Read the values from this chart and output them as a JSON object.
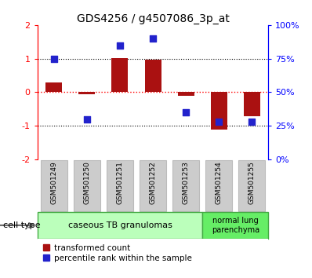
{
  "title": "GDS4256 / g4507086_3p_at",
  "samples": [
    "GSM501249",
    "GSM501250",
    "GSM501251",
    "GSM501252",
    "GSM501253",
    "GSM501254",
    "GSM501255"
  ],
  "red_values": [
    0.3,
    -0.05,
    1.02,
    0.97,
    -0.1,
    -1.12,
    -0.72
  ],
  "blue_values_pct": [
    75,
    30,
    85,
    90,
    35,
    28,
    28
  ],
  "ylim_red": [
    -2,
    2
  ],
  "ylim_blue": [
    0,
    100
  ],
  "yticks_red": [
    -2,
    -1,
    0,
    1,
    2
  ],
  "yticks_blue": [
    0,
    25,
    50,
    75,
    100
  ],
  "ytick_labels_blue": [
    "0%",
    "25%",
    "50%",
    "75%",
    "100%"
  ],
  "bar_width": 0.5,
  "square_size": 40,
  "red_color": "#aa1111",
  "blue_color": "#2222cc",
  "cell_type_groups": [
    {
      "label": "caseous TB granulomas",
      "span": [
        0,
        4
      ],
      "color": "#bbffbb"
    },
    {
      "label": "normal lung\nparenchyma",
      "span": [
        5,
        6
      ],
      "color": "#66ee66"
    }
  ],
  "legend_red": "transformed count",
  "legend_blue": "percentile rank within the sample",
  "cell_type_label": "cell type",
  "background_color": "#ffffff",
  "plot_bg": "#ffffff",
  "sample_box_color": "#cccccc",
  "sample_box_edge": "#bbbbbb"
}
